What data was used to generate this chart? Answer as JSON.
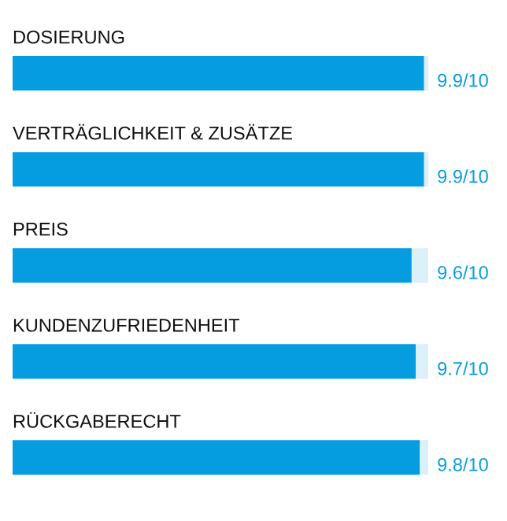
{
  "chart_data": {
    "type": "bar",
    "orientation": "horizontal",
    "stacked": true,
    "categories": [
      "DOSIERUNG",
      "VERTRÄGLICHKEIT & ZUSÄTZE",
      "PREIS",
      "KUNDENZUFRIEDENHEIT",
      "RÜCKGABERECHT"
    ],
    "series": [
      {
        "color": "#069de0",
        "values": [
          9.9,
          9.9,
          9.6,
          9.7,
          9.8
        ],
        "value_labels": [
          "9.9",
          "9.9",
          "9.6",
          "9.7",
          "9.8"
        ]
      },
      {
        "color": "#dcf0fa",
        "values": [
          0.1,
          0.1,
          0.4,
          0.3,
          0.2
        ]
      }
    ],
    "annotations": [
      "/10",
      "/10",
      "/10",
      "/10",
      "/10"
    ],
    "xlim": [
      0,
      10
    ]
  }
}
